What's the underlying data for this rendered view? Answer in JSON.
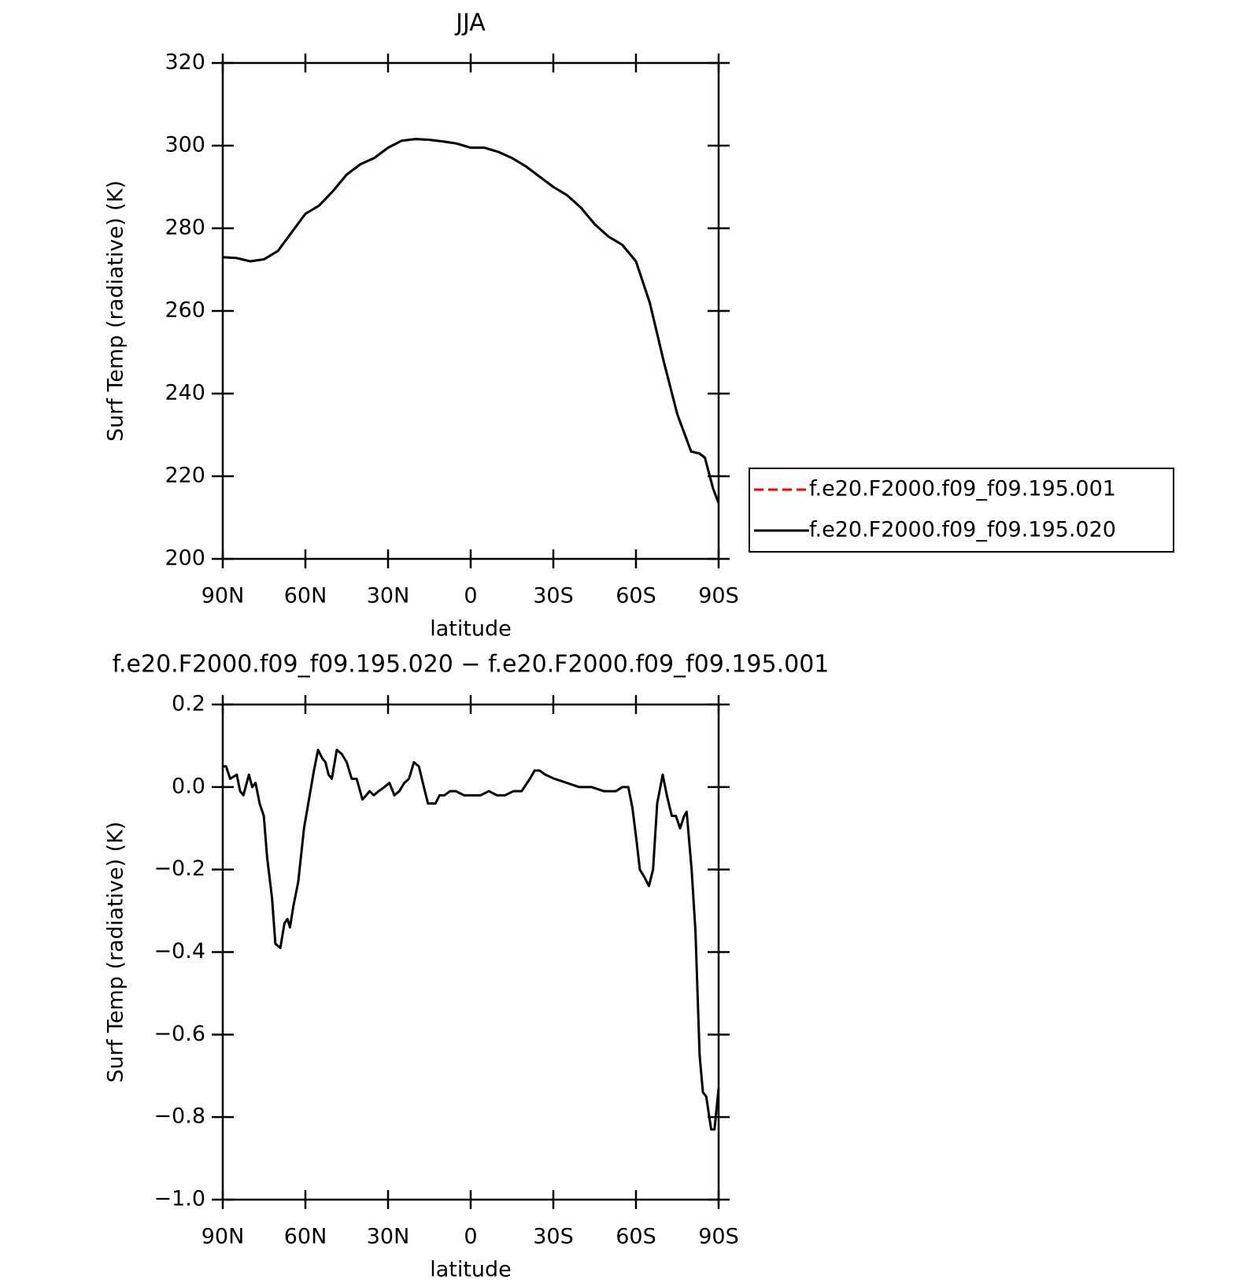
{
  "chart_data": [
    {
      "type": "line",
      "title": "JJA",
      "xlabel": "latitude",
      "ylabel": "Surf Temp (radiative) (K)",
      "x": [
        90,
        85,
        80,
        75,
        70,
        65,
        60,
        55,
        50,
        45,
        40,
        35,
        30,
        25,
        20,
        15,
        10,
        5,
        0,
        -5,
        -10,
        -15,
        -20,
        -25,
        -30,
        -35,
        -40,
        -45,
        -50,
        -55,
        -60,
        -65,
        -70,
        -75,
        -80,
        -83,
        -85,
        -88,
        -90
      ],
      "series": [
        {
          "name": "f.e20.F2000.f09_f09.195.001",
          "color": "#ff0000",
          "line_style": "dashed",
          "values": [
            273,
            272.8,
            272,
            272.5,
            274.5,
            279,
            283.5,
            285.5,
            289,
            293,
            295.5,
            297,
            299.5,
            301.2,
            301.6,
            301.4,
            301,
            300.5,
            299.5,
            299.5,
            298.5,
            297,
            295,
            292.5,
            290,
            288,
            285,
            281,
            278,
            276,
            272,
            262,
            248,
            235,
            226,
            225.5,
            224.5,
            217,
            213.5
          ]
        },
        {
          "name": "f.e20.F2000.f09_f09.195.020",
          "color": "#000000",
          "line_style": "solid",
          "values": [
            273,
            272.8,
            272,
            272.5,
            274.5,
            279,
            283.5,
            285.5,
            289,
            293,
            295.5,
            297,
            299.5,
            301.2,
            301.6,
            301.4,
            301,
            300.5,
            299.5,
            299.5,
            298.5,
            297,
            295,
            292.5,
            290,
            288,
            285,
            281,
            278,
            276,
            272,
            262,
            248,
            235,
            226,
            225.5,
            224.5,
            217,
            213.5
          ]
        }
      ],
      "xlim": [
        90,
        -90
      ],
      "xticks": [
        {
          "value": 90,
          "label": "90N"
        },
        {
          "value": 60,
          "label": "60N"
        },
        {
          "value": 30,
          "label": "30N"
        },
        0,
        {
          "value": -30,
          "label": "30S"
        },
        {
          "value": -60,
          "label": "60S"
        },
        {
          "value": -90,
          "label": "90S"
        }
      ],
      "ylim": [
        200,
        320
      ],
      "yticks": [
        200,
        220,
        240,
        260,
        280,
        300,
        320
      ],
      "grid": false,
      "legend": "right"
    },
    {
      "type": "line",
      "title": "f.e20.F2000.f09_f09.195.020 − f.e20.F2000.f09_f09.195.001",
      "xlabel": "latitude",
      "ylabel": "Surf Temp (radiative) (K)",
      "color": "#000000",
      "x": [
        90,
        88.8,
        87.3,
        84.9,
        83.7,
        82.5,
        80.5,
        79.3,
        78.1,
        76.6,
        75.1,
        73.9,
        72.1,
        70.9,
        69.1,
        67.6,
        66.5,
        65.6,
        64.4,
        62.6,
        60.5,
        58.7,
        56.9,
        55.4,
        53.9,
        52.7,
        51.6,
        50.4,
        48.6,
        46.8,
        45.0,
        43.2,
        41.4,
        39.3,
        37.9,
        36.7,
        35.2,
        33.4,
        31.3,
        29.5,
        27.7,
        25.9,
        24.1,
        22.4,
        20.6,
        18.8,
        17.0,
        15.5,
        12.8,
        11.3,
        9.5,
        7.5,
        5.4,
        2.4,
        -0.6,
        -3.6,
        -6.6,
        -9.5,
        -12.5,
        -15.5,
        -18.5,
        -21.5,
        -23.2,
        -25.0,
        -27.1,
        -30.4,
        -34.9,
        -39.3,
        -43.8,
        -48.3,
        -52.7,
        -55.1,
        -57.2,
        -58.7,
        -60.2,
        -61.4,
        -63.2,
        -64.7,
        -66.2,
        -67.7,
        -69.7,
        -71.2,
        -73.0,
        -74.5,
        -76.0,
        -77.5,
        -78.4,
        -80.2,
        -81.6,
        -83.1,
        -84.3,
        -85.5,
        -87.3,
        -88.5,
        -90
      ],
      "values": [
        0.05,
        0.05,
        0.02,
        0.03,
        -0.01,
        -0.02,
        0.03,
        0.0,
        0.01,
        -0.04,
        -0.07,
        -0.17,
        -0.27,
        -0.38,
        -0.39,
        -0.33,
        -0.32,
        -0.34,
        -0.29,
        -0.23,
        -0.1,
        -0.03,
        0.04,
        0.09,
        0.07,
        0.06,
        0.03,
        0.02,
        0.09,
        0.08,
        0.06,
        0.02,
        0.02,
        -0.03,
        -0.02,
        -0.01,
        -0.02,
        -0.01,
        0.0,
        0.01,
        -0.02,
        -0.01,
        0.01,
        0.02,
        0.06,
        0.05,
        0.0,
        -0.04,
        -0.04,
        -0.02,
        -0.02,
        -0.01,
        -0.01,
        -0.02,
        -0.02,
        -0.02,
        -0.01,
        -0.02,
        -0.02,
        -0.01,
        -0.01,
        0.02,
        0.04,
        0.04,
        0.03,
        0.02,
        0.01,
        0.0,
        0.0,
        -0.01,
        -0.01,
        0.0,
        0.0,
        -0.05,
        -0.13,
        -0.2,
        -0.22,
        -0.24,
        -0.2,
        -0.04,
        0.03,
        -0.02,
        -0.07,
        -0.07,
        -0.1,
        -0.07,
        -0.06,
        -0.2,
        -0.35,
        -0.65,
        -0.74,
        -0.75,
        -0.83,
        -0.83,
        -0.73
      ],
      "xlim": [
        90,
        -90
      ],
      "xticks": [
        {
          "value": 90,
          "label": "90N"
        },
        {
          "value": 60,
          "label": "60N"
        },
        {
          "value": 30,
          "label": "30N"
        },
        0,
        {
          "value": -30,
          "label": "30S"
        },
        {
          "value": -60,
          "label": "60S"
        },
        {
          "value": -90,
          "label": "90S"
        }
      ],
      "ylim": [
        -1.0,
        0.2
      ],
      "yticks": [
        {
          "value": -1.0,
          "label": "−1.0"
        },
        {
          "value": -0.8,
          "label": "−0.8"
        },
        {
          "value": -0.6,
          "label": "−0.6"
        },
        {
          "value": -0.4,
          "label": "−0.4"
        },
        {
          "value": -0.2,
          "label": "−0.2"
        },
        {
          "value": 0.0,
          "label": "0.0"
        },
        {
          "value": 0.2,
          "label": "0.2"
        }
      ],
      "grid": false
    }
  ]
}
